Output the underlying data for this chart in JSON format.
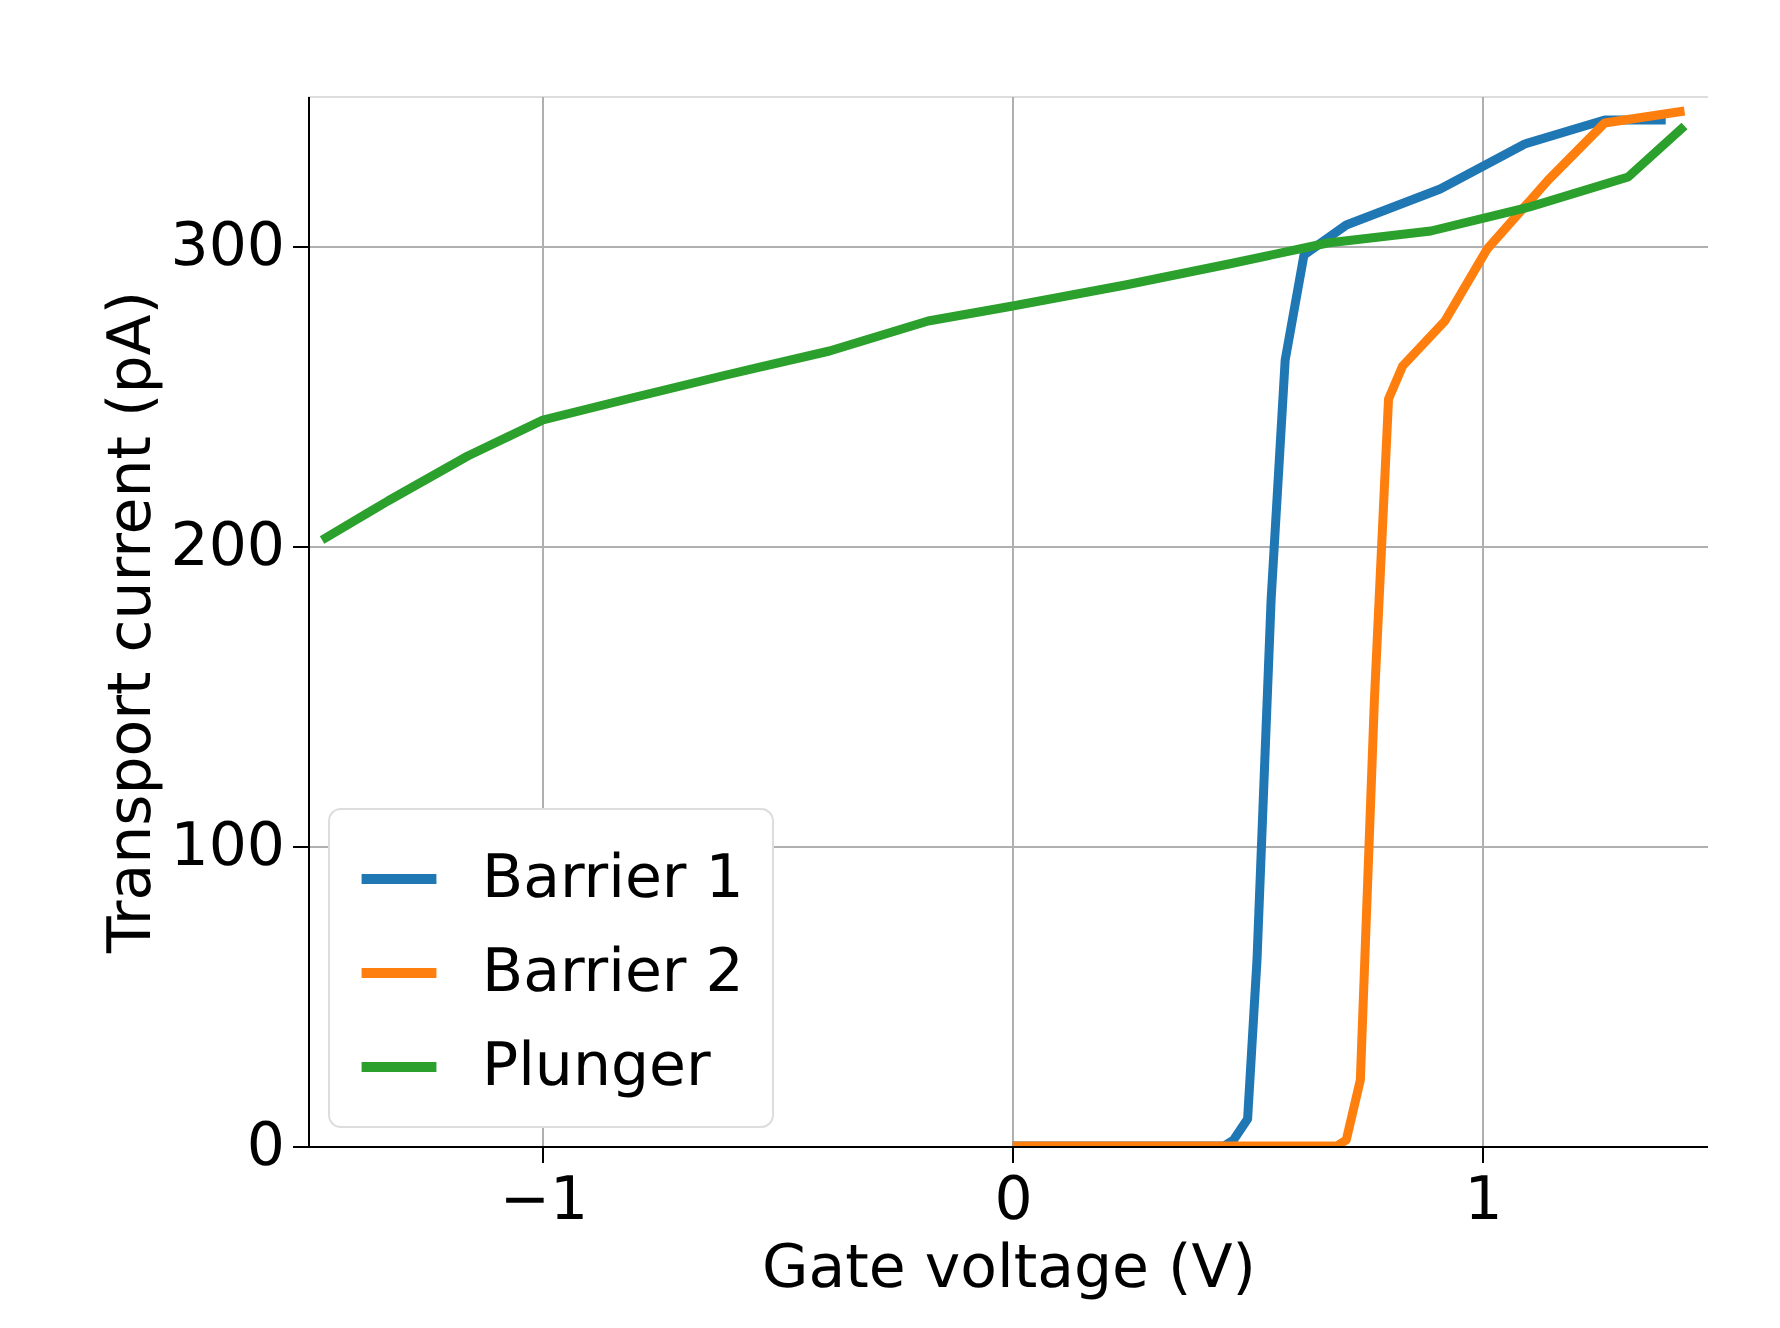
{
  "chart_data": {
    "type": "line",
    "xlabel": "Gate voltage (V)",
    "ylabel": "Transport current (pA)",
    "xlim": [
      -1.5,
      1.48
    ],
    "ylim": [
      0,
      350
    ],
    "xticks": [
      {
        "value": -1,
        "label": "−1"
      },
      0,
      1
    ],
    "yticks": [
      0,
      100,
      200,
      300
    ],
    "grid": true,
    "legend": "bottom left",
    "series": [
      {
        "name": "Barrier 1",
        "color": "#1f77b4",
        "x": [
          0,
          0.3,
          0.45,
          0.47,
          0.5,
          0.52,
          0.55,
          0.58,
          0.62,
          0.71,
          0.91,
          1.09,
          1.26,
          1.39
        ],
        "values": [
          0,
          0,
          0,
          2,
          9,
          62,
          182,
          262,
          297,
          307,
          319,
          334,
          342,
          342
        ]
      },
      {
        "name": "Barrier 2",
        "color": "#ff7f0e",
        "x": [
          0,
          0.4,
          0.69,
          0.71,
          0.74,
          0.77,
          0.8,
          0.83,
          0.92,
          1.01,
          1.14,
          1.26,
          1.43
        ],
        "values": [
          0,
          0,
          0,
          2,
          22,
          149,
          249,
          260,
          275,
          299,
          322,
          341,
          345
        ]
      },
      {
        "name": "Plunger",
        "color": "#2ca02c",
        "x": [
          -1.47,
          -1.33,
          -1.16,
          -1.0,
          -0.82,
          -0.61,
          -0.39,
          -0.18,
          0,
          0.24,
          0.46,
          0.67,
          0.89,
          1.1,
          1.31,
          1.43
        ],
        "values": [
          202,
          215,
          230,
          242,
          249,
          257,
          265,
          275,
          280,
          287,
          294,
          301,
          305,
          313,
          323,
          340
        ]
      }
    ]
  }
}
